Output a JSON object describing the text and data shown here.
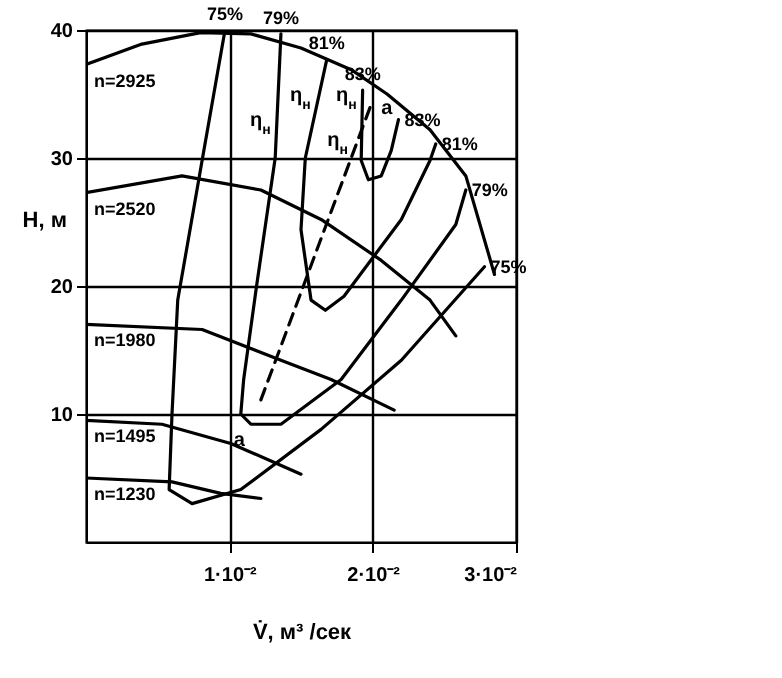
{
  "chart_data": {
    "type": "line",
    "xlabel": "V̇, м³ /сек",
    "ylabel": "H, м",
    "xlim": [
      0,
      0.03
    ],
    "ylim": [
      0,
      40
    ],
    "xticks": [
      {
        "value": 0.01,
        "label": "1·10⁻²"
      },
      {
        "value": 0.02,
        "label": "2·10⁻²"
      },
      {
        "value": 0.03,
        "label": "3·10⁻²"
      }
    ],
    "yticks": [
      10,
      20,
      30,
      40
    ],
    "grid": true,
    "marker": "none",
    "line_style": "solid",
    "series": [
      {
        "name": "n=2925",
        "color": "#000000",
        "x": [
          0,
          0.0039,
          0.008,
          0.0115,
          0.015,
          0.0185,
          0.021,
          0.024,
          0.0265,
          0.0285
        ],
        "values": [
          37.3,
          38.9,
          39.8,
          39.7,
          38.6,
          36.9,
          35,
          32.2,
          28.6,
          20.9
        ]
      },
      {
        "name": "n=2520",
        "color": "#000000",
        "x": [
          0,
          0.0067,
          0.0122,
          0.0164,
          0.0206,
          0.024,
          0.0258
        ],
        "values": [
          27.3,
          28.6,
          27.5,
          25.2,
          22,
          18.9,
          16.1
        ]
      },
      {
        "name": "n=1980",
        "color": "#000000",
        "x": [
          0,
          0.0081,
          0.0136,
          0.0171,
          0.0215
        ],
        "values": [
          17,
          16.6,
          14.2,
          12.7,
          10.3
        ]
      },
      {
        "name": "n=1495",
        "color": "#000000",
        "x": [
          0,
          0.0053,
          0.0101,
          0.015
        ],
        "values": [
          9.5,
          9.2,
          7.7,
          5.3
        ]
      },
      {
        "name": "n=1230",
        "color": "#000000",
        "x": [
          0,
          0.006,
          0.0094,
          0.0122
        ],
        "values": [
          5,
          4.7,
          3.8,
          3.4
        ]
      },
      {
        "name": "75%",
        "color": "#000000",
        "x": [
          0.0097,
          0.0081,
          0.0064,
          0.006,
          0.0058,
          0.0074,
          0.0108,
          0.0164,
          0.022,
          0.0278
        ],
        "values": [
          40,
          29.8,
          18.9,
          10,
          4.1,
          3,
          4.1,
          8.8,
          14.2,
          21.5
        ]
      },
      {
        "name": "79%",
        "color": "#000000",
        "x": [
          0.0136,
          0.0132,
          0.0119,
          0.011,
          0.0108,
          0.0115,
          0.0136,
          0.0178,
          0.022,
          0.0258,
          0.0265
        ],
        "values": [
          39.7,
          30,
          20,
          12.7,
          10,
          9.2,
          9.2,
          12.7,
          18.9,
          24.8,
          27.5
        ]
      },
      {
        "name": "81%",
        "color": "#000000",
        "x": [
          0.0168,
          0.0153,
          0.015,
          0.0157,
          0.0167,
          0.018,
          0.022,
          0.024,
          0.0244
        ],
        "values": [
          37.7,
          30,
          24.4,
          18.9,
          18.1,
          19.2,
          25.2,
          29.8,
          31.1
        ]
      },
      {
        "name": "83%",
        "color": "#000000",
        "x": [
          0.0193,
          0.0192,
          0.0197,
          0.0206,
          0.0213,
          0.0218
        ],
        "values": [
          35.3,
          29.8,
          28.3,
          28.6,
          30.6,
          33
        ]
      },
      {
        "color": "#000000",
        "line_style": "dashed",
        "x": [
          0.0122,
          0.02
        ],
        "values": [
          11.1,
          34.5
        ]
      }
    ],
    "annotations": [
      {
        "text": "η$_{н}$",
        "x": 0.0133,
        "y": 32
      },
      {
        "text": "η$_{н}$",
        "x": 0.0161,
        "y": 34
      },
      {
        "text": "η$_{н}$",
        "x": 0.0193,
        "y": 34
      },
      {
        "text": "η$_{н}$",
        "x": 0.0187,
        "y": 30.5
      },
      {
        "text": "a",
        "x": 0.0218,
        "y": 33
      },
      {
        "text": "a",
        "x": 0.0115,
        "y": 7
      }
    ]
  }
}
